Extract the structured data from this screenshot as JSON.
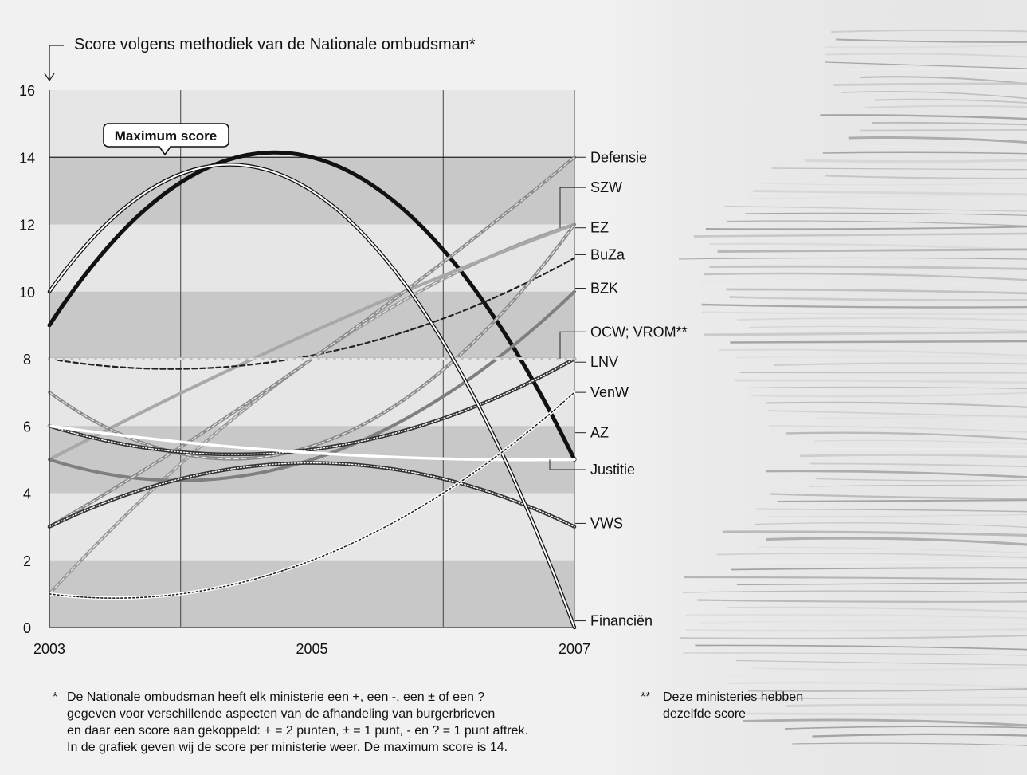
{
  "chart_data": {
    "type": "line",
    "title": "Score volgens methodiek van de Nationale ombudsman*",
    "xlabel": "",
    "ylabel": "",
    "x": [
      2003,
      2005,
      2007
    ],
    "x_ticks": [
      "2003",
      "2005",
      "2007"
    ],
    "ylim": [
      0,
      16
    ],
    "y_ticks": [
      "0",
      "2",
      "4",
      "6",
      "8",
      "10",
      "12",
      "14",
      "16"
    ],
    "grid": true,
    "bands": [
      [
        0,
        2
      ],
      [
        4,
        6
      ],
      [
        8,
        10
      ],
      [
        12,
        14
      ]
    ],
    "max_score": 14,
    "max_score_label": "Maximum score",
    "series": [
      {
        "name": "Defensie",
        "values": [
          9,
          14,
          5
        ],
        "color": "#111111",
        "style": "thick"
      },
      {
        "name": "SZW",
        "values": [
          1,
          8,
          12
        ],
        "color": "#9a9a9a",
        "style": "dashed-gray"
      },
      {
        "name": "EZ",
        "values": [
          5,
          8.8,
          12
        ],
        "color": "#a8a8a8",
        "style": "solid-gray"
      },
      {
        "name": "BuZa",
        "values": [
          8,
          8.1,
          11
        ],
        "color": "#222222",
        "style": "dashed-dark"
      },
      {
        "name": "BZK",
        "values": [
          5,
          5,
          10
        ],
        "color": "#7f7f7f",
        "style": "solid-gray"
      },
      {
        "name": "OCW; VROM**",
        "values": [
          3,
          8,
          14
        ],
        "color": "#8a8a8a",
        "style": "dashed-gray"
      },
      {
        "name": "LNV",
        "values": [
          7,
          5.4,
          12
        ],
        "color": "#8a8a8a",
        "style": "dashed-gray"
      },
      {
        "name": "VenW",
        "values": [
          6,
          5.3,
          8
        ],
        "color": "#333333",
        "style": "dotted-dark"
      },
      {
        "name": "AZ",
        "values": [
          6,
          5.2,
          5
        ],
        "color": "#ffffff",
        "style": "solid-white"
      },
      {
        "name": "Justitie",
        "values": [
          8,
          8,
          8
        ],
        "color": "#bcbcbc",
        "style": "dashed-light"
      },
      {
        "name": "VWS",
        "values": [
          3,
          4.9,
          3
        ],
        "color": "#333333",
        "style": "dotted-dark"
      },
      {
        "name": "Financiën",
        "values": [
          10,
          13,
          0
        ],
        "color": "#222222",
        "style": "double"
      },
      {
        "name": "",
        "values": [
          1,
          2,
          7
        ],
        "color": "#222222",
        "style": "dotted-white"
      }
    ],
    "labels": [
      {
        "text": "Defensie",
        "y": 14
      },
      {
        "text": "SZW",
        "y": 13.1
      },
      {
        "text": "EZ",
        "y": 11.9
      },
      {
        "text": "BuZa",
        "y": 11.1
      },
      {
        "text": "BZK",
        "y": 10.1
      },
      {
        "text": "OCW; VROM**",
        "y": 8.8
      },
      {
        "text": "LNV",
        "y": 7.9
      },
      {
        "text": "VenW",
        "y": 7.0
      },
      {
        "text": "AZ",
        "y": 5.8
      },
      {
        "text": "Justitie",
        "y": 4.7
      },
      {
        "text": "VWS",
        "y": 3.1
      },
      {
        "text": "Financiën",
        "y": 0.2
      }
    ]
  },
  "footnotes": {
    "note1_mark": "*",
    "note1_lines": [
      "De Nationale ombudsman heeft elk ministerie een +, een -, een ± of een ?",
      "gegeven voor verschillende aspecten van de afhandeling van burgerbrieven",
      "en daar een score aan gekoppeld: + = 2 punten, ± = 1 punt, - en ? = 1 punt aftrek.",
      "In de grafiek geven wij de score per ministerie weer. De maximum score is 14."
    ],
    "note2_mark": "**",
    "note2_lines": [
      "Deze ministeries hebben",
      "dezelfde score"
    ]
  },
  "colors": {
    "background": "#f1f1f1",
    "plot_background": "#e6e6e6",
    "band": "#c8c8c8"
  }
}
